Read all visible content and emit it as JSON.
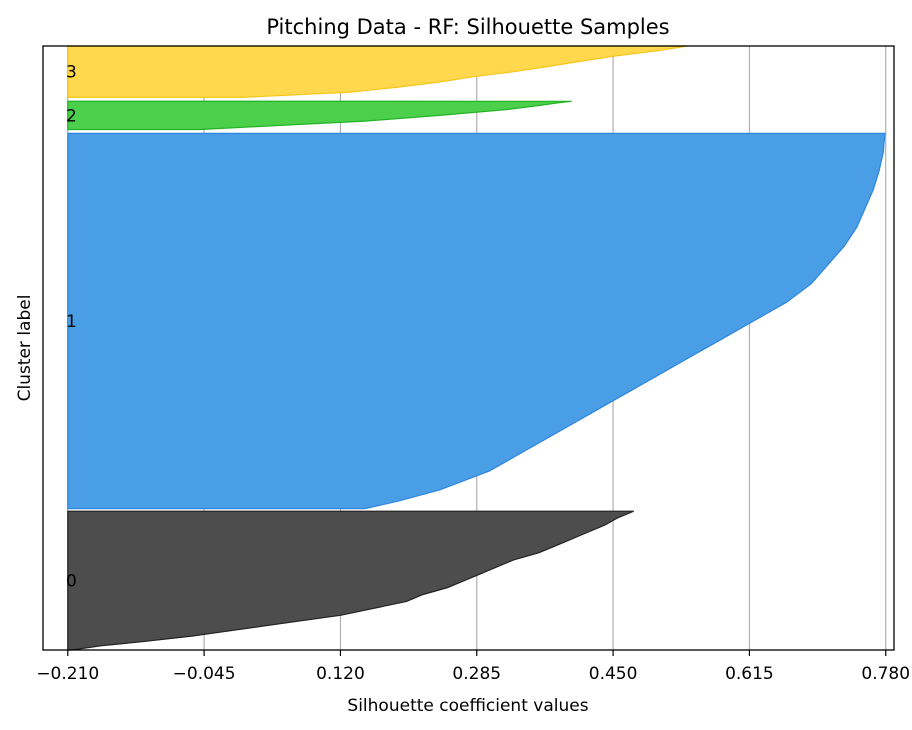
{
  "chart_data": {
    "type": "silhouette",
    "title": "Pitching Data - RF: Silhouette Samples",
    "xlabel": "Silhouette coefficient values",
    "ylabel": "Cluster label",
    "xlim": [
      -0.24,
      0.79
    ],
    "ylim": [
      0,
      470
    ],
    "xticks": [
      -0.21,
      -0.045,
      0.12,
      0.285,
      0.45,
      0.615,
      0.78
    ],
    "xtick_labels": [
      "−0.210",
      "−0.045",
      "0.120",
      "0.285",
      "0.450",
      "0.615",
      "0.780"
    ],
    "grid": "vertical",
    "clusters": [
      {
        "label": "0",
        "color": "#4d4d4d",
        "edge": "#222222",
        "y_range": [
          0,
          108
        ],
        "min": -0.21,
        "max": 0.475,
        "profile": [
          [
            0,
            -0.205
          ],
          [
            0.03,
            -0.17
          ],
          [
            0.06,
            -0.12
          ],
          [
            0.1,
            -0.06
          ],
          [
            0.15,
            0.0
          ],
          [
            0.2,
            0.06
          ],
          [
            0.25,
            0.12
          ],
          [
            0.3,
            0.16
          ],
          [
            0.35,
            0.2
          ],
          [
            0.4,
            0.22
          ],
          [
            0.45,
            0.25
          ],
          [
            0.5,
            0.27
          ],
          [
            0.55,
            0.29
          ],
          [
            0.6,
            0.31
          ],
          [
            0.65,
            0.33
          ],
          [
            0.7,
            0.36
          ],
          [
            0.75,
            0.38
          ],
          [
            0.8,
            0.4
          ],
          [
            0.85,
            0.42
          ],
          [
            0.9,
            0.44
          ],
          [
            0.95,
            0.455
          ],
          [
            1.0,
            0.475
          ]
        ]
      },
      {
        "label": "1",
        "color": "#4a9ee6",
        "edge": "#2e86de",
        "y_range": [
          110,
          402
        ],
        "min": -0.21,
        "max": 0.779,
        "profile": [
          [
            0,
            0.15
          ],
          [
            0.02,
            0.19
          ],
          [
            0.05,
            0.24
          ],
          [
            0.1,
            0.3
          ],
          [
            0.15,
            0.34
          ],
          [
            0.2,
            0.38
          ],
          [
            0.25,
            0.42
          ],
          [
            0.3,
            0.46
          ],
          [
            0.35,
            0.5
          ],
          [
            0.4,
            0.54
          ],
          [
            0.45,
            0.58
          ],
          [
            0.5,
            0.62
          ],
          [
            0.55,
            0.66
          ],
          [
            0.6,
            0.69
          ],
          [
            0.65,
            0.71
          ],
          [
            0.7,
            0.73
          ],
          [
            0.75,
            0.745
          ],
          [
            0.8,
            0.755
          ],
          [
            0.85,
            0.765
          ],
          [
            0.9,
            0.772
          ],
          [
            0.95,
            0.777
          ],
          [
            1.0,
            0.779
          ]
        ]
      },
      {
        "label": "2",
        "color": "#4cd04c",
        "edge": "#22b222",
        "y_range": [
          405,
          427
        ],
        "min": -0.21,
        "max": 0.4,
        "profile": [
          [
            0,
            -0.05
          ],
          [
            0.15,
            0.05
          ],
          [
            0.3,
            0.15
          ],
          [
            0.5,
            0.24
          ],
          [
            0.7,
            0.32
          ],
          [
            0.85,
            0.36
          ],
          [
            0.95,
            0.385
          ],
          [
            1.0,
            0.4
          ]
        ]
      },
      {
        "label": "3",
        "color": "#ffd84d",
        "edge": "#f5c518",
        "y_range": [
          430,
          470
        ],
        "min": -0.21,
        "max": 0.54,
        "profile": [
          [
            0,
            0.0
          ],
          [
            0.1,
            0.13
          ],
          [
            0.2,
            0.19
          ],
          [
            0.3,
            0.24
          ],
          [
            0.4,
            0.28
          ],
          [
            0.5,
            0.33
          ],
          [
            0.6,
            0.37
          ],
          [
            0.7,
            0.41
          ],
          [
            0.8,
            0.45
          ],
          [
            0.9,
            0.5
          ],
          [
            0.95,
            0.52
          ],
          [
            1.0,
            0.54
          ]
        ]
      }
    ]
  }
}
